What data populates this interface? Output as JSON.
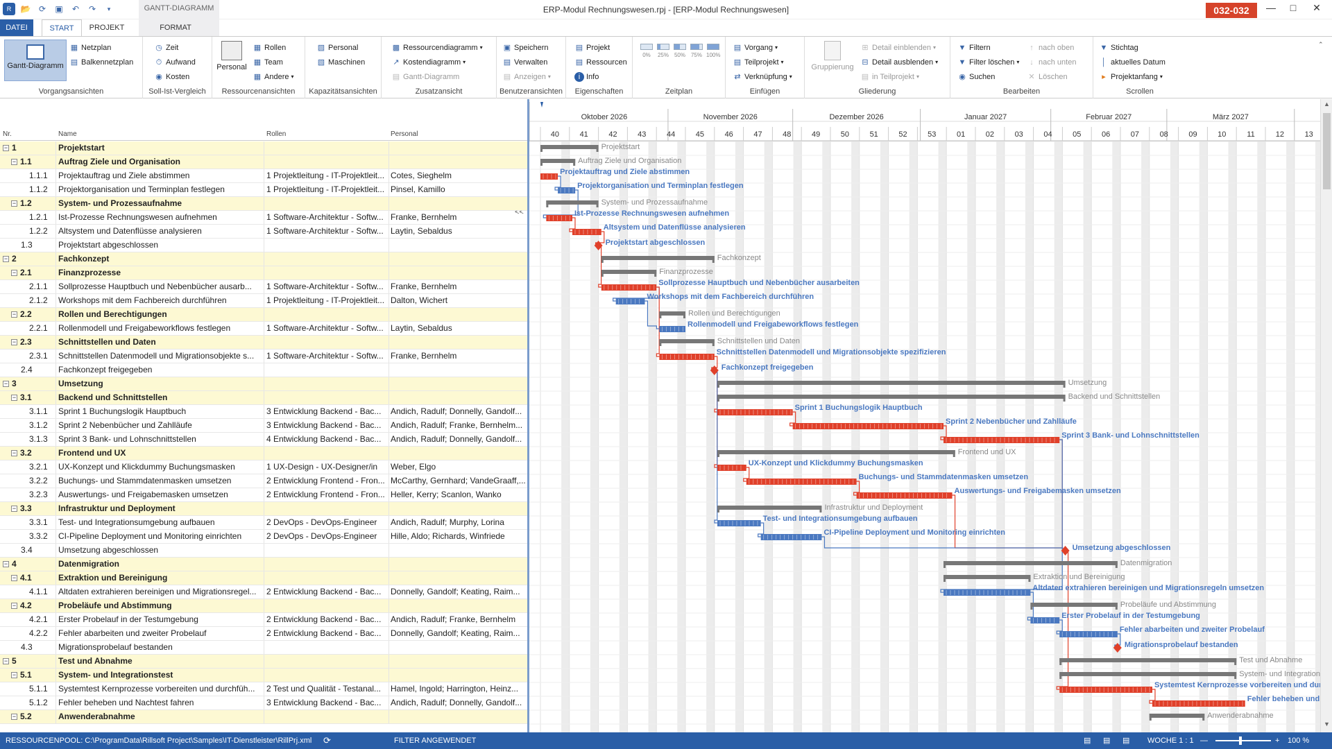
{
  "window": {
    "title": "ERP-Modul Rechnungswesen.rpj - [ERP-Modul Rechnungswesen]",
    "badge": "032-032",
    "context_tab": "GANTT-DIAGRAMM"
  },
  "tabs": {
    "datei": "DATEI",
    "start": "START",
    "projekt": "PROJEKT",
    "format": "FORMAT"
  },
  "ribbon": {
    "vorgangsansichten": {
      "label": "Vorgangsansichten",
      "gantt": "Gantt-Diagramm",
      "netzplan": "Netzplan",
      "balkennetzplan": "Balkennetzplan"
    },
    "sollist": {
      "label": "Soll-Ist-Vergleich",
      "zeit": "Zeit",
      "aufwand": "Aufwand",
      "kosten": "Kosten"
    },
    "ressourcen": {
      "label": "Ressourcenansichten",
      "personal": "Personal",
      "rollen": "Rollen",
      "team": "Team",
      "andere": "Andere"
    },
    "kapazitaet": {
      "label": "Kapazitätsansichten",
      "personal": "Personal",
      "maschinen": "Maschinen"
    },
    "zusatz": {
      "label": "Zusatzansicht",
      "ressourcendiagramm": "Ressourcendiagramm",
      "kostendiagramm": "Kostendiagramm",
      "gantt": "Gantt-Diagramm"
    },
    "benutzer": {
      "label": "Benutzeransichten",
      "speichern": "Speichern",
      "verwalten": "Verwalten",
      "anzeigen": "Anzeigen"
    },
    "eigenschaften": {
      "label": "Eigenschaften",
      "projekt": "Projekt",
      "ressourcen": "Ressourcen",
      "info": "Info"
    },
    "zeitplan": {
      "label": "Zeitplan",
      "pcts": [
        "0%",
        "25%",
        "50%",
        "75%",
        "100%"
      ]
    },
    "einfuegen": {
      "label": "Einfügen",
      "vorgang": "Vorgang",
      "teilprojekt": "Teilprojekt",
      "verknuepfung": "Verknüpfung"
    },
    "gliederung": {
      "label": "Gliederung",
      "gruppierung": "Gruppierung",
      "detail_ein": "Detail einblenden",
      "detail_aus": "Detail ausblenden",
      "in_teilprojekt": "in Teilprojekt"
    },
    "bearbeiten": {
      "label": "Bearbeiten",
      "filtern": "Filtern",
      "filter_loeschen": "Filter löschen",
      "suchen": "Suchen",
      "nach_oben": "nach oben",
      "nach_unten": "nach unten",
      "loeschen": "Löschen"
    },
    "scrollen": {
      "label": "Scrollen",
      "stichtag": "Stichtag",
      "aktuelles_datum": "aktuelles Datum",
      "projektanfang": "Projektanfang"
    }
  },
  "table": {
    "headers": {
      "nr": "Nr.",
      "name": "Name",
      "rollen": "Rollen",
      "personal": "Personal"
    },
    "collapse_label": "<<",
    "rows": [
      {
        "nr": "1",
        "name": "Projektstart",
        "rollen": "",
        "personal": "",
        "sum": true,
        "ind": 0
      },
      {
        "nr": "1.1",
        "name": "Auftrag Ziele und Organisation",
        "rollen": "",
        "personal": "",
        "sum": true,
        "ind": 1
      },
      {
        "nr": "1.1.1",
        "name": "Projektauftrag und Ziele abstimmen",
        "rollen": "1 Projektleitung - IT-Projektleit...",
        "personal": "Cotes, Sieghelm",
        "sum": false,
        "ind": 2
      },
      {
        "nr": "1.1.2",
        "name": "Projektorganisation und Terminplan festlegen",
        "rollen": "1 Projektleitung - IT-Projektleit...",
        "personal": "Pinsel, Kamillo",
        "sum": false,
        "ind": 2
      },
      {
        "nr": "1.2",
        "name": "System- und Prozessaufnahme",
        "rollen": "",
        "personal": "",
        "sum": true,
        "ind": 1
      },
      {
        "nr": "1.2.1",
        "name": "Ist-Prozesse Rechnungswesen aufnehmen",
        "rollen": "1 Software-Architektur - Softw...",
        "personal": "Franke, Bernhelm",
        "sum": false,
        "ind": 2
      },
      {
        "nr": "1.2.2",
        "name": "Altsystem und Datenflüsse analysieren",
        "rollen": "1 Software-Architektur - Softw...",
        "personal": "Laytin, Sebaldus",
        "sum": false,
        "ind": 2
      },
      {
        "nr": "1.3",
        "name": "Projektstart abgeschlossen",
        "rollen": "",
        "personal": "",
        "sum": false,
        "ind": 1
      },
      {
        "nr": "2",
        "name": "Fachkonzept",
        "rollen": "",
        "personal": "",
        "sum": true,
        "ind": 0
      },
      {
        "nr": "2.1",
        "name": "Finanzprozesse",
        "rollen": "",
        "personal": "",
        "sum": true,
        "ind": 1
      },
      {
        "nr": "2.1.1",
        "name": "Sollprozesse Hauptbuch und Nebenbücher ausarb...",
        "rollen": "1 Software-Architektur - Softw...",
        "personal": "Franke, Bernhelm",
        "sum": false,
        "ind": 2
      },
      {
        "nr": "2.1.2",
        "name": "Workshops mit dem Fachbereich durchführen",
        "rollen": "1 Projektleitung - IT-Projektleit...",
        "personal": "Dalton, Wichert",
        "sum": false,
        "ind": 2
      },
      {
        "nr": "2.2",
        "name": "Rollen und Berechtigungen",
        "rollen": "",
        "personal": "",
        "sum": true,
        "ind": 1
      },
      {
        "nr": "2.2.1",
        "name": "Rollenmodell und Freigabeworkflows festlegen",
        "rollen": "1 Software-Architektur - Softw...",
        "personal": "Laytin, Sebaldus",
        "sum": false,
        "ind": 2
      },
      {
        "nr": "2.3",
        "name": "Schnittstellen und Daten",
        "rollen": "",
        "personal": "",
        "sum": true,
        "ind": 1
      },
      {
        "nr": "2.3.1",
        "name": "Schnittstellen Datenmodell und Migrationsobjekte s...",
        "rollen": "1 Software-Architektur - Softw...",
        "personal": "Franke, Bernhelm",
        "sum": false,
        "ind": 2
      },
      {
        "nr": "2.4",
        "name": "Fachkonzept freigegeben",
        "rollen": "",
        "personal": "",
        "sum": false,
        "ind": 1
      },
      {
        "nr": "3",
        "name": "Umsetzung",
        "rollen": "",
        "personal": "",
        "sum": true,
        "ind": 0
      },
      {
        "nr": "3.1",
        "name": "Backend und Schnittstellen",
        "rollen": "",
        "personal": "",
        "sum": true,
        "ind": 1
      },
      {
        "nr": "3.1.1",
        "name": "Sprint 1 Buchungslogik Hauptbuch",
        "rollen": "3 Entwicklung Backend - Bac...",
        "personal": "Andich, Radulf; Donnelly, Gandolf...",
        "sum": false,
        "ind": 2
      },
      {
        "nr": "3.1.2",
        "name": "Sprint 2 Nebenbücher und Zahlläufe",
        "rollen": "3 Entwicklung Backend - Bac...",
        "personal": "Andich, Radulf; Franke, Bernhelm...",
        "sum": false,
        "ind": 2
      },
      {
        "nr": "3.1.3",
        "name": "Sprint 3 Bank- und Lohnschnittstellen",
        "rollen": "4 Entwicklung Backend - Bac...",
        "personal": "Andich, Radulf; Donnelly, Gandolf...",
        "sum": false,
        "ind": 2
      },
      {
        "nr": "3.2",
        "name": "Frontend und UX",
        "rollen": "",
        "personal": "",
        "sum": true,
        "ind": 1
      },
      {
        "nr": "3.2.1",
        "name": "UX-Konzept und Klickdummy Buchungsmasken",
        "rollen": "1 UX-Design - UX-Designer/in",
        "personal": "Weber, Elgo",
        "sum": false,
        "ind": 2
      },
      {
        "nr": "3.2.2",
        "name": "Buchungs- und Stammdatenmasken umsetzen",
        "rollen": "2 Entwicklung Frontend - Fron...",
        "personal": "McCarthy, Gernhard; VandeGraaff,...",
        "sum": false,
        "ind": 2
      },
      {
        "nr": "3.2.3",
        "name": "Auswertungs- und Freigabemasken umsetzen",
        "rollen": "2 Entwicklung Frontend - Fron...",
        "personal": "Heller, Kerry; Scanlon, Wanko",
        "sum": false,
        "ind": 2
      },
      {
        "nr": "3.3",
        "name": "Infrastruktur und Deployment",
        "rollen": "",
        "personal": "",
        "sum": true,
        "ind": 1
      },
      {
        "nr": "3.3.1",
        "name": "Test- und Integrationsumgebung aufbauen",
        "rollen": "2 DevOps - DevOps-Engineer",
        "personal": "Andich, Radulf; Murphy, Lorina",
        "sum": false,
        "ind": 2
      },
      {
        "nr": "3.3.2",
        "name": "CI-Pipeline Deployment und Monitoring einrichten",
        "rollen": "2 DevOps - DevOps-Engineer",
        "personal": "Hille, Aldo; Richards, Winfriede",
        "sum": false,
        "ind": 2
      },
      {
        "nr": "3.4",
        "name": "Umsetzung abgeschlossen",
        "rollen": "",
        "personal": "",
        "sum": false,
        "ind": 1
      },
      {
        "nr": "4",
        "name": "Datenmigration",
        "rollen": "",
        "personal": "",
        "sum": true,
        "ind": 0
      },
      {
        "nr": "4.1",
        "name": "Extraktion und Bereinigung",
        "rollen": "",
        "personal": "",
        "sum": true,
        "ind": 1
      },
      {
        "nr": "4.1.1",
        "name": "Altdaten extrahieren bereinigen und Migrationsregel...",
        "rollen": "2 Entwicklung Backend - Bac...",
        "personal": "Donnelly, Gandolf; Keating, Raim...",
        "sum": false,
        "ind": 2
      },
      {
        "nr": "4.2",
        "name": "Probeläufe und Abstimmung",
        "rollen": "",
        "personal": "",
        "sum": true,
        "ind": 1
      },
      {
        "nr": "4.2.1",
        "name": "Erster Probelauf in der Testumgebung",
        "rollen": "2 Entwicklung Backend - Bac...",
        "personal": "Andich, Radulf; Franke, Bernhelm",
        "sum": false,
        "ind": 2
      },
      {
        "nr": "4.2.2",
        "name": "Fehler abarbeiten und zweiter Probelauf",
        "rollen": "2 Entwicklung Backend - Bac...",
        "personal": "Donnelly, Gandolf; Keating, Raim...",
        "sum": false,
        "ind": 2
      },
      {
        "nr": "4.3",
        "name": "Migrationsprobelauf bestanden",
        "rollen": "",
        "personal": "",
        "sum": false,
        "ind": 1
      },
      {
        "nr": "5",
        "name": "Test und Abnahme",
        "rollen": "",
        "personal": "",
        "sum": true,
        "ind": 0
      },
      {
        "nr": "5.1",
        "name": "System- und Integrationstest",
        "rollen": "",
        "personal": "",
        "sum": true,
        "ind": 1
      },
      {
        "nr": "5.1.1",
        "name": "Systemtest Kernprozesse vorbereiten und durchfüh...",
        "rollen": "2 Test und Qualität - Testanal...",
        "personal": "Hamel, Ingold; Harrington, Heinz...",
        "sum": false,
        "ind": 2
      },
      {
        "nr": "5.1.2",
        "name": "Fehler beheben und Nachtest fahren",
        "rollen": "3 Entwicklung Backend - Bac...",
        "personal": "Andich, Radulf; Donnelly, Gandolf...",
        "sum": false,
        "ind": 2
      },
      {
        "nr": "5.2",
        "name": "Anwenderabnahme",
        "rollen": "",
        "personal": "",
        "sum": true,
        "ind": 1
      }
    ]
  },
  "timeline": {
    "months": [
      {
        "label": "Oktober 2026",
        "start": 40,
        "end": 44.4
      },
      {
        "label": "November 2026",
        "start": 44.4,
        "end": 48.7
      },
      {
        "label": "Dezember 2026",
        "start": 48.7,
        "end": 53.1
      },
      {
        "label": "Januar 2027",
        "start": 53.1,
        "end": 57.6
      },
      {
        "label": "Februar 2027",
        "start": 57.6,
        "end": 61.6
      },
      {
        "label": "März 2027",
        "start": 61.6,
        "end": 66
      }
    ],
    "weeks": [
      "40",
      "41",
      "42",
      "43",
      "44",
      "45",
      "46",
      "47",
      "48",
      "49",
      "50",
      "51",
      "52",
      "53",
      "01",
      "02",
      "03",
      "04",
      "05",
      "06",
      "07",
      "08",
      "09",
      "10",
      "11",
      "12",
      "13"
    ]
  },
  "gantt": {
    "summary_color": "#777777",
    "red": "#e0402a",
    "blue": "#4a78c0",
    "bars": [
      {
        "row": 0,
        "s": 40.0,
        "e": 42.0,
        "type": "sum",
        "label": "Projektstart"
      },
      {
        "row": 1,
        "s": 40.0,
        "e": 41.2,
        "type": "sum",
        "label": "Auftrag Ziele und Organisation"
      },
      {
        "row": 2,
        "s": 40.0,
        "e": 40.6,
        "type": "red",
        "label": "Projektauftrag und Ziele abstimmen"
      },
      {
        "row": 3,
        "s": 40.6,
        "e": 41.2,
        "type": "blue",
        "label": "Projektorganisation und Terminplan festlegen"
      },
      {
        "row": 4,
        "s": 40.2,
        "e": 42.0,
        "type": "sum",
        "label": "System- und Prozessaufnahme"
      },
      {
        "row": 5,
        "s": 40.2,
        "e": 41.1,
        "type": "red",
        "label": "Ist-Prozesse Rechnungswesen aufnehmen"
      },
      {
        "row": 6,
        "s": 41.1,
        "e": 42.1,
        "type": "red",
        "label": "Altsystem und Datenflüsse analysieren"
      },
      {
        "row": 7,
        "s": 42.0,
        "e": 42.0,
        "type": "ms",
        "label": "Projektstart abgeschlossen"
      },
      {
        "row": 8,
        "s": 42.1,
        "e": 46.0,
        "type": "sum",
        "label": "Fachkonzept"
      },
      {
        "row": 9,
        "s": 42.1,
        "e": 44.0,
        "type": "sum",
        "label": "Finanzprozesse"
      },
      {
        "row": 10,
        "s": 42.1,
        "e": 44.0,
        "type": "red",
        "label": "Sollprozesse Hauptbuch und Nebenbücher ausarbeiten"
      },
      {
        "row": 11,
        "s": 42.6,
        "e": 43.6,
        "type": "blue",
        "label": "Workshops mit dem Fachbereich durchführen"
      },
      {
        "row": 12,
        "s": 44.1,
        "e": 45.0,
        "type": "sum",
        "label": "Rollen und Berechtigungen"
      },
      {
        "row": 13,
        "s": 44.1,
        "e": 45.0,
        "type": "blue",
        "label": "Rollenmodell und Freigabeworkflows festlegen"
      },
      {
        "row": 14,
        "s": 44.1,
        "e": 46.0,
        "type": "sum",
        "label": "Schnittstellen und Daten"
      },
      {
        "row": 15,
        "s": 44.1,
        "e": 46.0,
        "type": "red",
        "label": "Schnittstellen Datenmodell und Migrationsobjekte spezifizieren"
      },
      {
        "row": 16,
        "s": 46.0,
        "e": 46.0,
        "type": "ms",
        "label": "Fachkonzept freigegeben"
      },
      {
        "row": 17,
        "s": 46.1,
        "e": 58.1,
        "type": "sum",
        "label": "Umsetzung"
      },
      {
        "row": 18,
        "s": 46.1,
        "e": 58.1,
        "type": "sum",
        "label": "Backend und Schnittstellen"
      },
      {
        "row": 19,
        "s": 46.1,
        "e": 48.7,
        "type": "red",
        "label": "Sprint 1 Buchungslogik Hauptbuch"
      },
      {
        "row": 20,
        "s": 48.7,
        "e": 53.9,
        "type": "red",
        "label": "Sprint 2 Nebenbücher und Zahlläufe"
      },
      {
        "row": 21,
        "s": 53.9,
        "e": 57.9,
        "type": "red",
        "label": "Sprint 3 Bank- und Lohnschnittstellen"
      },
      {
        "row": 22,
        "s": 46.1,
        "e": 54.3,
        "type": "sum",
        "label": "Frontend und UX"
      },
      {
        "row": 23,
        "s": 46.1,
        "e": 47.1,
        "type": "red",
        "label": "UX-Konzept und Klickdummy Buchungsmasken"
      },
      {
        "row": 24,
        "s": 47.1,
        "e": 50.9,
        "type": "red",
        "label": "Buchungs- und Stammdatenmasken umsetzen"
      },
      {
        "row": 25,
        "s": 50.9,
        "e": 54.2,
        "type": "red",
        "label": "Auswertungs- und Freigabemasken umsetzen"
      },
      {
        "row": 26,
        "s": 46.1,
        "e": 49.7,
        "type": "sum",
        "label": "Infrastruktur und Deployment"
      },
      {
        "row": 27,
        "s": 46.1,
        "e": 47.6,
        "type": "blue",
        "label": "Test- und Integrationsumgebung aufbauen"
      },
      {
        "row": 28,
        "s": 47.6,
        "e": 49.7,
        "type": "blue",
        "label": "CI-Pipeline Deployment und Monitoring einrichten"
      },
      {
        "row": 29,
        "s": 58.1,
        "e": 58.1,
        "type": "ms",
        "label": "Umsetzung abgeschlossen"
      },
      {
        "row": 30,
        "s": 53.9,
        "e": 59.9,
        "type": "sum",
        "label": "Datenmigration"
      },
      {
        "row": 31,
        "s": 53.9,
        "e": 56.9,
        "type": "sum",
        "label": "Extraktion und Bereinigung"
      },
      {
        "row": 32,
        "s": 53.9,
        "e": 56.9,
        "type": "blue",
        "label": "Altdaten extrahieren bereinigen und Migrationsregeln umsetzen"
      },
      {
        "row": 33,
        "s": 56.9,
        "e": 59.9,
        "type": "sum",
        "label": "Probeläufe und Abstimmung"
      },
      {
        "row": 34,
        "s": 56.9,
        "e": 57.9,
        "type": "blue",
        "label": "Erster Probelauf in der Testumgebung"
      },
      {
        "row": 35,
        "s": 57.9,
        "e": 59.9,
        "type": "blue",
        "label": "Fehler abarbeiten und zweiter Probelauf"
      },
      {
        "row": 36,
        "s": 59.9,
        "e": 59.9,
        "type": "ms",
        "label": "Migrationsprobelauf bestanden"
      },
      {
        "row": 37,
        "s": 57.9,
        "e": 64.0,
        "type": "sum",
        "label": "Test und Abnahme"
      },
      {
        "row": 38,
        "s": 57.9,
        "e": 64.0,
        "type": "sum",
        "label": "System- und Integrationstest"
      },
      {
        "row": 39,
        "s": 57.9,
        "e": 61.1,
        "type": "red",
        "label": "Systemtest Kernprozesse vorbereiten und durchführen"
      },
      {
        "row": 40,
        "s": 61.1,
        "e": 64.3,
        "type": "red",
        "label": "Fehler beheben und Nachtest fahren"
      },
      {
        "row": 41,
        "s": 61.0,
        "e": 62.9,
        "type": "sum",
        "label": "Anwenderabnahme"
      }
    ]
  },
  "status": {
    "pool": "RESSOURCENPOOL: C:\\ProgramData\\Rillsoft Project\\Samples\\IT-Dienstleister\\RillPrj.xml",
    "filter": "FILTER ANGEWENDET",
    "woche": "WOCHE 1 : 1",
    "zoom": "100 %"
  }
}
